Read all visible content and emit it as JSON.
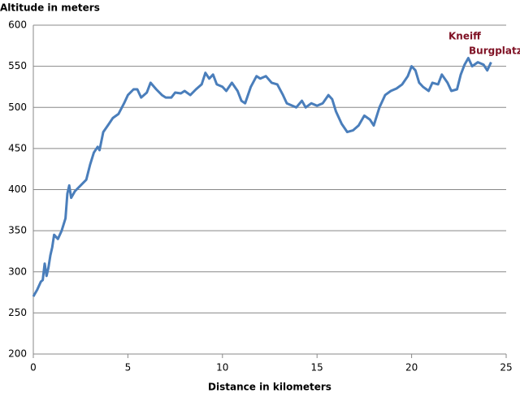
{
  "chart_data": {
    "type": "line",
    "y_label": "Altitude in meters",
    "x_label": "Distance in kilometers",
    "annotations": [
      "Kneiff",
      "Burgplatz"
    ],
    "color": "#4a7ebb",
    "x": [
      0,
      0.2,
      0.4,
      0.5,
      0.6,
      0.7,
      0.8,
      0.9,
      1.0,
      1.1,
      1.3,
      1.5,
      1.7,
      1.8,
      1.9,
      2.0,
      2.2,
      2.5,
      2.8,
      3.0,
      3.2,
      3.4,
      3.5,
      3.7,
      4.0,
      4.2,
      4.5,
      4.8,
      5.0,
      5.3,
      5.5,
      5.7,
      6.0,
      6.2,
      6.5,
      6.8,
      7.0,
      7.3,
      7.5,
      7.8,
      8.0,
      8.3,
      8.6,
      8.9,
      9.1,
      9.3,
      9.5,
      9.7,
      10.0,
      10.2,
      10.5,
      10.8,
      11.0,
      11.2,
      11.5,
      11.8,
      12.0,
      12.3,
      12.6,
      12.9,
      13.2,
      13.4,
      13.6,
      13.9,
      14.2,
      14.4,
      14.7,
      15.0,
      15.3,
      15.6,
      15.8,
      16.0,
      16.3,
      16.6,
      16.9,
      17.2,
      17.5,
      17.8,
      18.0,
      18.3,
      18.6,
      18.9,
      19.2,
      19.5,
      19.8,
      20.0,
      20.2,
      20.4,
      20.6,
      20.9,
      21.1,
      21.4,
      21.6,
      21.9,
      22.1,
      22.4,
      22.6,
      22.8,
      23.0,
      23.2,
      23.5,
      23.8,
      24.0,
      24.2
    ],
    "values": [
      270,
      278,
      288,
      290,
      310,
      295,
      305,
      320,
      330,
      345,
      340,
      350,
      365,
      395,
      405,
      390,
      398,
      405,
      412,
      430,
      445,
      452,
      448,
      470,
      480,
      487,
      492,
      505,
      515,
      522,
      522,
      512,
      518,
      530,
      522,
      515,
      512,
      512,
      518,
      517,
      520,
      515,
      522,
      528,
      542,
      535,
      540,
      528,
      525,
      520,
      530,
      520,
      508,
      505,
      525,
      538,
      535,
      538,
      530,
      528,
      515,
      505,
      503,
      500,
      508,
      500,
      505,
      502,
      505,
      515,
      510,
      495,
      480,
      470,
      472,
      478,
      490,
      485,
      478,
      500,
      515,
      520,
      523,
      528,
      538,
      550,
      545,
      530,
      525,
      520,
      530,
      528,
      540,
      530,
      520,
      522,
      540,
      552,
      560,
      550,
      555,
      552,
      545,
      555
    ],
    "xlim": [
      0,
      25
    ],
    "xticks": [
      0,
      5,
      10,
      15,
      20,
      25
    ],
    "ylim": [
      200,
      600
    ],
    "yticks": [
      200,
      250,
      300,
      350,
      400,
      450,
      500,
      550,
      600
    ],
    "grid": true
  }
}
